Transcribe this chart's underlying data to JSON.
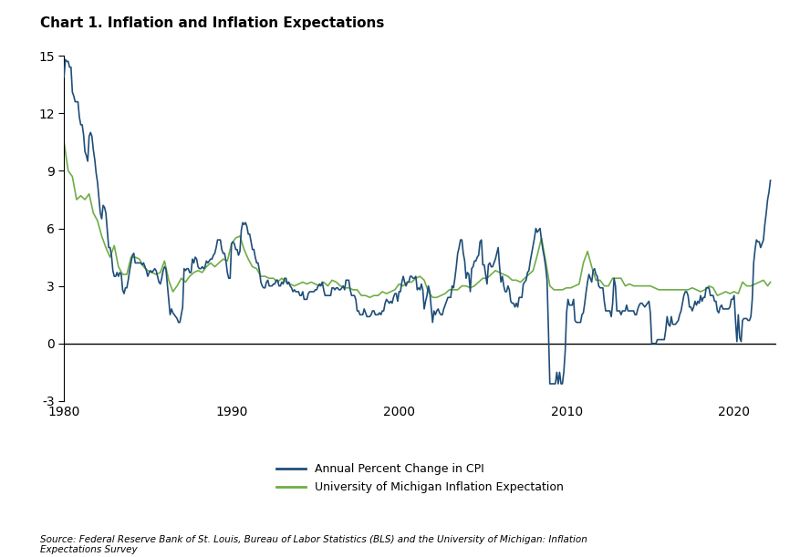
{
  "title": "Chart 1. Inflation and Inflation Expectations",
  "source_text": "Source: Federal Reserve Bank of St. Louis, Bureau of Labor Statistics (BLS) and the University of Michigan: Inflation\nExpectations Survey",
  "cpi_color": "#1f4e79",
  "mich_color": "#70ad47",
  "ylim": [
    -3,
    15
  ],
  "yticks": [
    -3,
    0,
    3,
    6,
    9,
    12,
    15
  ],
  "xlim": [
    1980,
    2022.5
  ],
  "xticks": [
    1980,
    1990,
    2000,
    2010,
    2020
  ],
  "legend_cpi": "Annual Percent Change in CPI",
  "legend_mich": "University of Michigan Inflation Expectation",
  "cpi_data": {
    "dates": [
      1980.0,
      1980.083,
      1980.167,
      1980.25,
      1980.333,
      1980.417,
      1980.5,
      1980.583,
      1980.667,
      1980.75,
      1980.833,
      1980.917,
      1981.0,
      1981.083,
      1981.167,
      1981.25,
      1981.333,
      1981.417,
      1981.5,
      1981.583,
      1981.667,
      1981.75,
      1981.833,
      1981.917,
      1982.0,
      1982.083,
      1982.167,
      1982.25,
      1982.333,
      1982.417,
      1982.5,
      1982.583,
      1982.667,
      1982.75,
      1982.833,
      1982.917,
      1983.0,
      1983.083,
      1983.167,
      1983.25,
      1983.333,
      1983.417,
      1983.5,
      1983.583,
      1983.667,
      1983.75,
      1983.833,
      1983.917,
      1984.0,
      1984.083,
      1984.167,
      1984.25,
      1984.333,
      1984.417,
      1984.5,
      1984.583,
      1984.667,
      1984.75,
      1984.833,
      1984.917,
      1985.0,
      1985.083,
      1985.167,
      1985.25,
      1985.333,
      1985.417,
      1985.5,
      1985.583,
      1985.667,
      1985.75,
      1985.833,
      1985.917,
      1986.0,
      1986.083,
      1986.167,
      1986.25,
      1986.333,
      1986.417,
      1986.5,
      1986.583,
      1986.667,
      1986.75,
      1986.833,
      1986.917,
      1987.0,
      1987.083,
      1987.167,
      1987.25,
      1987.333,
      1987.417,
      1987.5,
      1987.583,
      1987.667,
      1987.75,
      1987.833,
      1987.917,
      1988.0,
      1988.083,
      1988.167,
      1988.25,
      1988.333,
      1988.417,
      1988.5,
      1988.583,
      1988.667,
      1988.75,
      1988.833,
      1988.917,
      1989.0,
      1989.083,
      1989.167,
      1989.25,
      1989.333,
      1989.417,
      1989.5,
      1989.583,
      1989.667,
      1989.75,
      1989.833,
      1989.917,
      1990.0,
      1990.083,
      1990.167,
      1990.25,
      1990.333,
      1990.417,
      1990.5,
      1990.583,
      1990.667,
      1990.75,
      1990.833,
      1990.917,
      1991.0,
      1991.083,
      1991.167,
      1991.25,
      1991.333,
      1991.417,
      1991.5,
      1991.583,
      1991.667,
      1991.75,
      1991.833,
      1991.917,
      1992.0,
      1992.083,
      1992.167,
      1992.25,
      1992.333,
      1992.417,
      1992.5,
      1992.583,
      1992.667,
      1992.75,
      1992.833,
      1992.917,
      1993.0,
      1993.083,
      1993.167,
      1993.25,
      1993.333,
      1993.417,
      1993.5,
      1993.583,
      1993.667,
      1993.75,
      1993.833,
      1993.917,
      1994.0,
      1994.083,
      1994.167,
      1994.25,
      1994.333,
      1994.417,
      1994.5,
      1994.583,
      1994.667,
      1994.75,
      1994.833,
      1994.917,
      1995.0,
      1995.083,
      1995.167,
      1995.25,
      1995.333,
      1995.417,
      1995.5,
      1995.583,
      1995.667,
      1995.75,
      1995.833,
      1995.917,
      1996.0,
      1996.083,
      1996.167,
      1996.25,
      1996.333,
      1996.417,
      1996.5,
      1996.583,
      1996.667,
      1996.75,
      1996.833,
      1996.917,
      1997.0,
      1997.083,
      1997.167,
      1997.25,
      1997.333,
      1997.417,
      1997.5,
      1997.583,
      1997.667,
      1997.75,
      1997.833,
      1997.917,
      1998.0,
      1998.083,
      1998.167,
      1998.25,
      1998.333,
      1998.417,
      1998.5,
      1998.583,
      1998.667,
      1998.75,
      1998.833,
      1998.917,
      1999.0,
      1999.083,
      1999.167,
      1999.25,
      1999.333,
      1999.417,
      1999.5,
      1999.583,
      1999.667,
      1999.75,
      1999.833,
      1999.917,
      2000.0,
      2000.083,
      2000.167,
      2000.25,
      2000.333,
      2000.417,
      2000.5,
      2000.583,
      2000.667,
      2000.75,
      2000.833,
      2000.917,
      2001.0,
      2001.083,
      2001.167,
      2001.25,
      2001.333,
      2001.417,
      2001.5,
      2001.583,
      2001.667,
      2001.75,
      2001.833,
      2001.917,
      2002.0,
      2002.083,
      2002.167,
      2002.25,
      2002.333,
      2002.417,
      2002.5,
      2002.583,
      2002.667,
      2002.75,
      2002.833,
      2002.917,
      2003.0,
      2003.083,
      2003.167,
      2003.25,
      2003.333,
      2003.417,
      2003.5,
      2003.583,
      2003.667,
      2003.75,
      2003.833,
      2003.917,
      2004.0,
      2004.083,
      2004.167,
      2004.25,
      2004.333,
      2004.417,
      2004.5,
      2004.583,
      2004.667,
      2004.75,
      2004.833,
      2004.917,
      2005.0,
      2005.083,
      2005.167,
      2005.25,
      2005.333,
      2005.417,
      2005.5,
      2005.583,
      2005.667,
      2005.75,
      2005.833,
      2005.917,
      2006.0,
      2006.083,
      2006.167,
      2006.25,
      2006.333,
      2006.417,
      2006.5,
      2006.583,
      2006.667,
      2006.75,
      2006.833,
      2006.917,
      2007.0,
      2007.083,
      2007.167,
      2007.25,
      2007.333,
      2007.417,
      2007.5,
      2007.583,
      2007.667,
      2007.75,
      2007.833,
      2007.917,
      2008.0,
      2008.083,
      2008.167,
      2008.25,
      2008.333,
      2008.417,
      2008.5,
      2008.583,
      2008.667,
      2008.75,
      2008.833,
      2008.917,
      2009.0,
      2009.083,
      2009.167,
      2009.25,
      2009.333,
      2009.417,
      2009.5,
      2009.583,
      2009.667,
      2009.75,
      2009.833,
      2009.917,
      2010.0,
      2010.083,
      2010.167,
      2010.25,
      2010.333,
      2010.417,
      2010.5,
      2010.583,
      2010.667,
      2010.75,
      2010.833,
      2010.917,
      2011.0,
      2011.083,
      2011.167,
      2011.25,
      2011.333,
      2011.417,
      2011.5,
      2011.583,
      2011.667,
      2011.75,
      2011.833,
      2011.917,
      2012.0,
      2012.083,
      2012.167,
      2012.25,
      2012.333,
      2012.417,
      2012.5,
      2012.583,
      2012.667,
      2012.75,
      2012.833,
      2012.917,
      2013.0,
      2013.083,
      2013.167,
      2013.25,
      2013.333,
      2013.417,
      2013.5,
      2013.583,
      2013.667,
      2013.75,
      2013.833,
      2013.917,
      2014.0,
      2014.083,
      2014.167,
      2014.25,
      2014.333,
      2014.417,
      2014.5,
      2014.583,
      2014.667,
      2014.75,
      2014.833,
      2014.917,
      2015.0,
      2015.083,
      2015.167,
      2015.25,
      2015.333,
      2015.417,
      2015.5,
      2015.583,
      2015.667,
      2015.75,
      2015.833,
      2015.917,
      2016.0,
      2016.083,
      2016.167,
      2016.25,
      2016.333,
      2016.417,
      2016.5,
      2016.583,
      2016.667,
      2016.75,
      2016.833,
      2016.917,
      2017.0,
      2017.083,
      2017.167,
      2017.25,
      2017.333,
      2017.417,
      2017.5,
      2017.583,
      2017.667,
      2017.75,
      2017.833,
      2017.917,
      2018.0,
      2018.083,
      2018.167,
      2018.25,
      2018.333,
      2018.417,
      2018.5,
      2018.583,
      2018.667,
      2018.75,
      2018.833,
      2018.917,
      2019.0,
      2019.083,
      2019.167,
      2019.25,
      2019.333,
      2019.417,
      2019.5,
      2019.583,
      2019.667,
      2019.75,
      2019.833,
      2019.917,
      2020.0,
      2020.083,
      2020.167,
      2020.25,
      2020.333,
      2020.417,
      2020.5,
      2020.583,
      2020.667,
      2020.75,
      2020.833,
      2020.917,
      2021.0,
      2021.083,
      2021.167,
      2021.25,
      2021.333,
      2021.417,
      2021.5,
      2021.583,
      2021.667,
      2021.75,
      2021.833,
      2021.917,
      2022.0,
      2022.083,
      2022.167
    ],
    "values": [
      13.9,
      14.8,
      14.7,
      14.7,
      14.4,
      14.4,
      13.1,
      12.9,
      12.6,
      12.6,
      12.6,
      11.8,
      11.4,
      11.4,
      10.9,
      10.0,
      9.8,
      9.5,
      10.8,
      11.0,
      10.8,
      10.1,
      9.6,
      8.9,
      8.4,
      7.6,
      6.8,
      6.5,
      7.2,
      7.1,
      6.8,
      5.9,
      5.0,
      5.0,
      4.6,
      3.8,
      3.5,
      3.5,
      3.7,
      3.5,
      3.7,
      3.6,
      2.8,
      2.6,
      2.9,
      2.9,
      3.3,
      3.8,
      4.2,
      4.6,
      4.7,
      4.2,
      4.2,
      4.2,
      4.2,
      4.2,
      4.1,
      4.2,
      4.0,
      3.8,
      3.5,
      3.7,
      3.8,
      3.7,
      3.8,
      3.9,
      3.8,
      3.5,
      3.2,
      3.1,
      3.4,
      3.8,
      4.0,
      3.9,
      3.1,
      2.3,
      1.5,
      1.8,
      1.6,
      1.5,
      1.4,
      1.3,
      1.1,
      1.1,
      1.5,
      1.9,
      3.9,
      3.8,
      3.9,
      3.9,
      3.7,
      3.7,
      4.4,
      4.2,
      4.5,
      4.4,
      4.0,
      3.9,
      3.9,
      4.0,
      3.9,
      4.0,
      4.3,
      4.2,
      4.3,
      4.4,
      4.4,
      4.6,
      4.7,
      5.0,
      5.4,
      5.4,
      5.4,
      4.9,
      4.7,
      4.7,
      4.3,
      3.7,
      3.4,
      3.4,
      5.2,
      5.3,
      5.2,
      4.9,
      4.9,
      4.6,
      4.8,
      5.9,
      6.3,
      6.2,
      6.3,
      6.1,
      5.7,
      5.7,
      5.3,
      4.9,
      4.9,
      4.5,
      4.2,
      4.2,
      3.8,
      3.2,
      3.0,
      2.9,
      2.9,
      3.2,
      3.3,
      3.0,
      3.0,
      3.0,
      3.1,
      3.1,
      3.3,
      3.3,
      3.0,
      3.0,
      3.2,
      3.1,
      3.4,
      3.4,
      3.1,
      3.2,
      3.0,
      2.9,
      2.7,
      2.8,
      2.7,
      2.7,
      2.7,
      2.5,
      2.5,
      2.7,
      2.3,
      2.3,
      2.3,
      2.6,
      2.7,
      2.7,
      2.7,
      2.7,
      2.8,
      2.8,
      3.0,
      3.1,
      3.0,
      3.2,
      2.8,
      2.5,
      2.5,
      2.5,
      2.5,
      2.5,
      2.9,
      2.9,
      2.8,
      2.9,
      2.9,
      2.8,
      2.8,
      2.9,
      3.0,
      2.8,
      3.3,
      3.3,
      3.3,
      2.8,
      2.5,
      2.5,
      2.5,
      2.3,
      1.7,
      1.7,
      1.5,
      1.5,
      1.5,
      1.8,
      1.6,
      1.4,
      1.4,
      1.4,
      1.5,
      1.7,
      1.7,
      1.5,
      1.5,
      1.5,
      1.6,
      1.5,
      1.7,
      1.7,
      2.1,
      2.3,
      2.2,
      2.1,
      2.2,
      2.1,
      2.4,
      2.6,
      2.6,
      2.2,
      2.7,
      2.7,
      3.2,
      3.5,
      3.2,
      3.0,
      3.2,
      3.2,
      3.5,
      3.5,
      3.4,
      3.4,
      3.5,
      2.8,
      2.9,
      2.8,
      3.1,
      2.8,
      1.8,
      2.2,
      2.5,
      3.0,
      2.7,
      1.9,
      1.1,
      1.7,
      1.5,
      1.7,
      1.8,
      1.6,
      1.5,
      1.5,
      1.8,
      2.0,
      2.2,
      2.4,
      2.4,
      2.4,
      3.0,
      2.9,
      3.4,
      4.0,
      4.7,
      5.0,
      5.4,
      5.4,
      4.7,
      4.3,
      3.4,
      3.7,
      3.6,
      2.7,
      3.9,
      4.0,
      4.3,
      4.3,
      4.5,
      4.6,
      5.3,
      5.4,
      4.1,
      4.1,
      3.6,
      3.1,
      4.1,
      4.2,
      4.0,
      4.0,
      4.2,
      4.4,
      4.7,
      5.0,
      4.0,
      3.2,
      3.5,
      3.0,
      2.7,
      2.7,
      3.0,
      2.8,
      2.2,
      2.1,
      2.1,
      1.9,
      2.1,
      1.9,
      2.4,
      2.4,
      2.4,
      3.1,
      3.2,
      3.3,
      3.7,
      3.8,
      4.3,
      4.7,
      5.1,
      5.5,
      6.0,
      5.8,
      5.9,
      6.0,
      5.4,
      4.9,
      4.5,
      4.0,
      3.3,
      0.7,
      -2.1,
      -2.1,
      -2.1,
      -2.1,
      -2.1,
      -1.5,
      -2.1,
      -1.5,
      -2.1,
      -2.1,
      -1.5,
      -0.4,
      1.6,
      2.3,
      2.0,
      2.0,
      2.0,
      2.3,
      1.2,
      1.1,
      1.1,
      1.1,
      1.1,
      1.5,
      1.6,
      2.1,
      2.7,
      3.2,
      3.6,
      3.4,
      3.2,
      3.8,
      3.9,
      3.6,
      3.5,
      3.0,
      2.9,
      2.9,
      2.9,
      2.2,
      1.7,
      1.7,
      1.7,
      1.7,
      1.4,
      2.1,
      3.4,
      3.0,
      1.7,
      1.7,
      1.7,
      1.5,
      1.7,
      1.7,
      1.7,
      2.0,
      1.7,
      1.7,
      1.7,
      1.7,
      1.7,
      1.5,
      1.5,
      1.8,
      2.0,
      2.1,
      2.1,
      2.0,
      1.9,
      2.0,
      2.1,
      2.2,
      1.6,
      0.0,
      0.0,
      0.0,
      0.0,
      0.2,
      0.2,
      0.2,
      0.2,
      0.2,
      0.2,
      0.7,
      1.4,
      1.0,
      0.9,
      1.4,
      1.0,
      1.0,
      1.0,
      1.1,
      1.2,
      1.5,
      1.7,
      2.1,
      2.5,
      2.7,
      2.7,
      2.5,
      1.9,
      1.9,
      1.7,
      1.9,
      2.2,
      2.0,
      2.2,
      2.1,
      2.5,
      2.2,
      2.4,
      2.4,
      2.9,
      2.9,
      2.9,
      2.5,
      2.5,
      2.5,
      2.2,
      2.2,
      1.7,
      1.6,
      1.9,
      2.0,
      1.8,
      1.8,
      1.8,
      1.8,
      1.8,
      1.9,
      2.3,
      2.3,
      2.5,
      1.2,
      0.1,
      1.5,
      0.3,
      0.1,
      1.2,
      1.3,
      1.3,
      1.3,
      1.2,
      1.2,
      1.4,
      2.3,
      4.2,
      4.9,
      5.4,
      5.3,
      5.3,
      5.0,
      5.2,
      5.4,
      6.2,
      6.8,
      7.5,
      7.9,
      8.5
    ]
  },
  "mich_data": {
    "dates": [
      1980.0,
      1980.25,
      1980.5,
      1980.75,
      1981.0,
      1981.25,
      1981.5,
      1981.75,
      1982.0,
      1982.25,
      1982.5,
      1982.75,
      1983.0,
      1983.25,
      1983.5,
      1983.75,
      1984.0,
      1984.25,
      1984.5,
      1984.75,
      1985.0,
      1985.25,
      1985.5,
      1985.75,
      1986.0,
      1986.25,
      1986.5,
      1986.75,
      1987.0,
      1987.25,
      1987.5,
      1987.75,
      1988.0,
      1988.25,
      1988.5,
      1988.75,
      1989.0,
      1989.25,
      1989.5,
      1989.75,
      1990.0,
      1990.25,
      1990.5,
      1990.75,
      1991.0,
      1991.25,
      1991.5,
      1991.75,
      1992.0,
      1992.25,
      1992.5,
      1992.75,
      1993.0,
      1993.25,
      1993.5,
      1993.75,
      1994.0,
      1994.25,
      1994.5,
      1994.75,
      1995.0,
      1995.25,
      1995.5,
      1995.75,
      1996.0,
      1996.25,
      1996.5,
      1996.75,
      1997.0,
      1997.25,
      1997.5,
      1997.75,
      1998.0,
      1998.25,
      1998.5,
      1998.75,
      1999.0,
      1999.25,
      1999.5,
      1999.75,
      2000.0,
      2000.25,
      2000.5,
      2000.75,
      2001.0,
      2001.25,
      2001.5,
      2001.75,
      2002.0,
      2002.25,
      2002.5,
      2002.75,
      2003.0,
      2003.25,
      2003.5,
      2003.75,
      2004.0,
      2004.25,
      2004.5,
      2004.75,
      2005.0,
      2005.25,
      2005.5,
      2005.75,
      2006.0,
      2006.25,
      2006.5,
      2006.75,
      2007.0,
      2007.25,
      2007.5,
      2007.75,
      2008.0,
      2008.25,
      2008.5,
      2008.75,
      2009.0,
      2009.25,
      2009.5,
      2009.75,
      2010.0,
      2010.25,
      2010.5,
      2010.75,
      2011.0,
      2011.25,
      2011.5,
      2011.75,
      2012.0,
      2012.25,
      2012.5,
      2012.75,
      2013.0,
      2013.25,
      2013.5,
      2013.75,
      2014.0,
      2014.25,
      2014.5,
      2014.75,
      2015.0,
      2015.25,
      2015.5,
      2015.75,
      2016.0,
      2016.25,
      2016.5,
      2016.75,
      2017.0,
      2017.25,
      2017.5,
      2017.75,
      2018.0,
      2018.25,
      2018.5,
      2018.75,
      2019.0,
      2019.25,
      2019.5,
      2019.75,
      2020.0,
      2020.25,
      2020.5,
      2020.75,
      2021.0,
      2021.25,
      2021.5,
      2021.75,
      2022.0,
      2022.083,
      2022.167
    ],
    "values": [
      10.5,
      9.0,
      8.7,
      7.5,
      7.7,
      7.5,
      7.8,
      6.8,
      6.4,
      5.6,
      5.0,
      4.5,
      5.1,
      4.0,
      3.6,
      3.6,
      4.5,
      4.5,
      4.4,
      4.0,
      3.8,
      3.7,
      3.6,
      3.7,
      4.3,
      3.3,
      2.7,
      3.0,
      3.4,
      3.2,
      3.5,
      3.7,
      3.8,
      3.7,
      4.0,
      4.2,
      4.0,
      4.2,
      4.4,
      4.3,
      5.2,
      5.5,
      5.6,
      4.9,
      4.4,
      4.0,
      3.9,
      3.5,
      3.5,
      3.4,
      3.4,
      3.2,
      3.4,
      3.2,
      3.1,
      3.0,
      3.1,
      3.2,
      3.1,
      3.2,
      3.1,
      3.0,
      3.2,
      3.0,
      3.3,
      3.2,
      3.0,
      2.9,
      2.9,
      2.8,
      2.8,
      2.5,
      2.5,
      2.4,
      2.5,
      2.5,
      2.7,
      2.6,
      2.7,
      2.8,
      3.1,
      3.0,
      3.2,
      3.2,
      3.4,
      3.5,
      3.3,
      2.7,
      2.4,
      2.4,
      2.5,
      2.6,
      2.8,
      2.8,
      2.8,
      3.0,
      3.0,
      2.9,
      3.0,
      3.2,
      3.4,
      3.4,
      3.6,
      3.8,
      3.7,
      3.6,
      3.5,
      3.3,
      3.3,
      3.2,
      3.4,
      3.6,
      3.8,
      4.6,
      5.5,
      4.3,
      3.0,
      2.8,
      2.8,
      2.8,
      2.9,
      2.9,
      3.0,
      3.1,
      4.2,
      4.8,
      4.0,
      3.3,
      3.3,
      3.0,
      3.0,
      3.4,
      3.4,
      3.4,
      3.0,
      3.1,
      3.0,
      3.0,
      3.0,
      3.0,
      3.0,
      2.9,
      2.8,
      2.8,
      2.8,
      2.8,
      2.8,
      2.8,
      2.8,
      2.8,
      2.9,
      2.8,
      2.7,
      2.8,
      3.0,
      2.9,
      2.5,
      2.6,
      2.7,
      2.6,
      2.7,
      2.6,
      3.2,
      3.0,
      3.0,
      3.1,
      3.2,
      3.3,
      3.0,
      3.1,
      3.2
    ]
  }
}
